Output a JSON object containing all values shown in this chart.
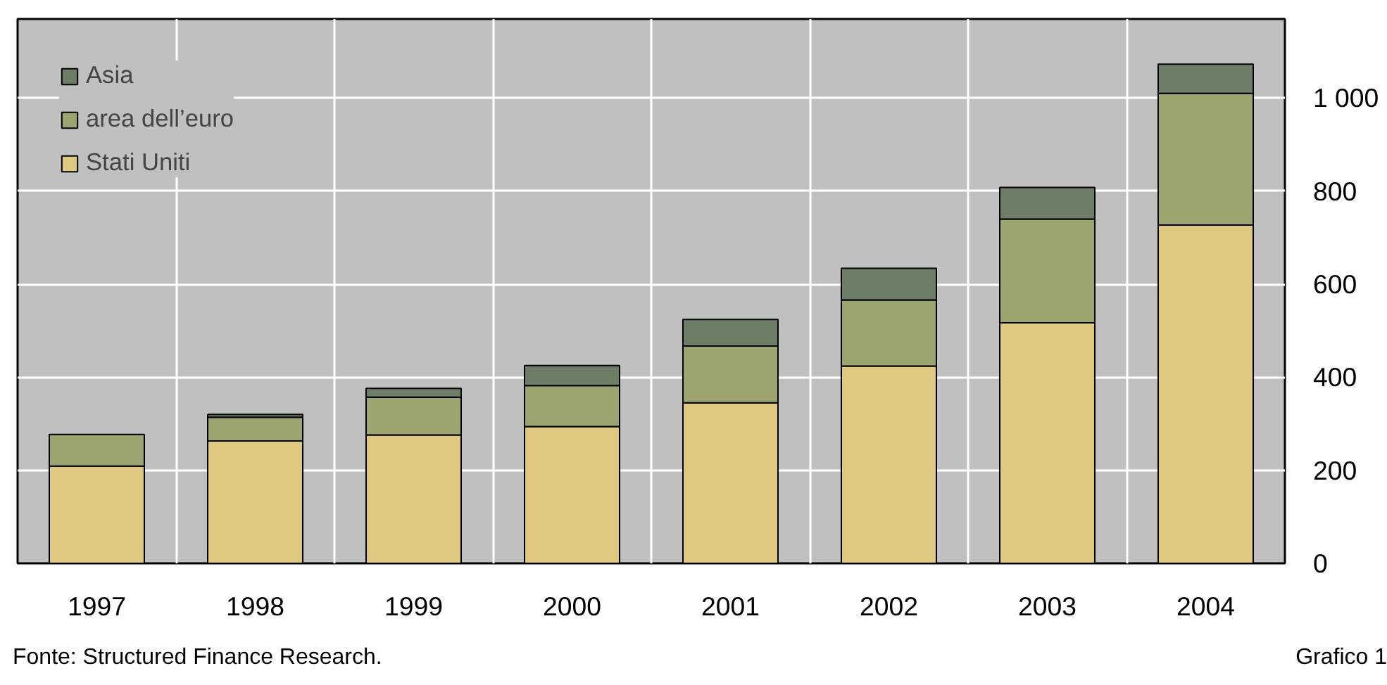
{
  "chart_data": {
    "type": "bar",
    "stacked": true,
    "categories": [
      "1997",
      "1998",
      "1999",
      "2000",
      "2001",
      "2002",
      "2003",
      "2004"
    ],
    "series": [
      {
        "name": "Stati Uniti",
        "color": "#dfc981",
        "values": [
          209,
          263,
          276,
          294,
          345,
          424,
          517,
          727
        ]
      },
      {
        "name": "area dell’euro",
        "color": "#9ca46f",
        "values": [
          68,
          51,
          81,
          88,
          122,
          142,
          223,
          283
        ]
      },
      {
        "name": "Asia",
        "color": "#6d7d66",
        "values": [
          null,
          6,
          19,
          43,
          57,
          68,
          68,
          63
        ]
      }
    ],
    "ylim": [
      0,
      1170
    ],
    "yticks": [
      0,
      200,
      400,
      600,
      800,
      {
        "value": 1000,
        "label": "1 000"
      }
    ],
    "grid": true,
    "legend": "top left",
    "annotations": [
      "Fonte: Structured Finance Research.",
      "Grafico 1"
    ]
  }
}
